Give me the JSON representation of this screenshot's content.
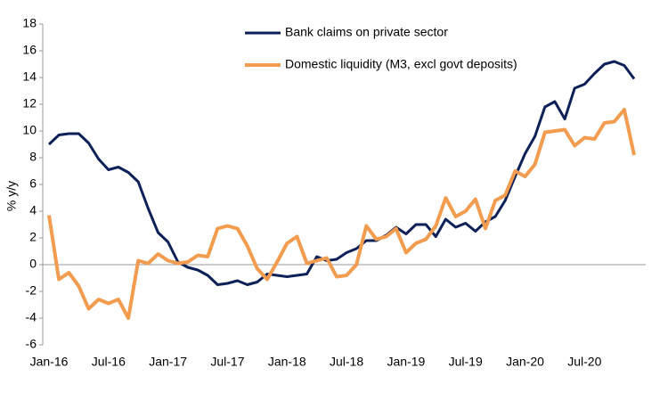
{
  "chart_data": {
    "type": "line",
    "y_label": "% y/y",
    "categories": [
      "Jan-16",
      null,
      null,
      null,
      null,
      null,
      "Jul-16",
      null,
      null,
      null,
      null,
      null,
      "Jan-17",
      null,
      null,
      null,
      null,
      null,
      "Jul-17",
      null,
      null,
      null,
      null,
      null,
      "Jan-18",
      null,
      null,
      null,
      null,
      null,
      "Jul-18",
      null,
      null,
      null,
      null,
      null,
      "Jan-19",
      null,
      null,
      null,
      null,
      null,
      "Jul-19",
      null,
      null,
      null,
      null,
      null,
      "Jan-20",
      null,
      null,
      null,
      null,
      null,
      "Jul-20",
      null,
      null,
      null,
      null,
      null
    ],
    "series": [
      {
        "name": "Bank claims on private sector",
        "color": "#0d2158",
        "values": [
          9.0,
          9.7,
          9.8,
          9.8,
          9.1,
          7.9,
          7.1,
          7.3,
          6.9,
          6.2,
          4.2,
          2.4,
          1.7,
          0.2,
          -0.2,
          -0.4,
          -0.8,
          -1.5,
          -1.4,
          -1.2,
          -1.5,
          -1.3,
          -0.7,
          -0.8,
          -0.9,
          -0.8,
          -0.7,
          0.6,
          0.3,
          0.4,
          0.9,
          1.2,
          1.8,
          1.8,
          2.2,
          2.8,
          2.3,
          3.0,
          3.0,
          2.1,
          3.4,
          2.8,
          3.1,
          2.5,
          3.2,
          3.6,
          4.8,
          6.6,
          8.3,
          9.6,
          11.8,
          12.2,
          10.9,
          13.2,
          13.5,
          14.3,
          15.0,
          15.2,
          14.9,
          13.9
        ]
      },
      {
        "name": "Domestic liquidity (M3, excl govt deposits)",
        "color": "#f39c4f",
        "values": [
          3.7,
          -1.1,
          -0.6,
          -1.6,
          -3.3,
          -2.6,
          -2.9,
          -2.6,
          -4.0,
          0.3,
          0.1,
          0.8,
          0.3,
          0.1,
          0.2,
          0.7,
          0.6,
          2.7,
          2.9,
          2.7,
          1.4,
          -0.3,
          -1.1,
          0.2,
          1.6,
          2.1,
          0.1,
          0.3,
          0.5,
          -0.9,
          -0.8,
          0.0,
          2.9,
          1.9,
          2.1,
          2.7,
          0.9,
          1.6,
          1.9,
          2.9,
          5.0,
          3.6,
          4.0,
          4.9,
          2.7,
          4.8,
          5.2,
          7.0,
          6.6,
          7.5,
          9.9,
          10.0,
          10.1,
          8.9,
          9.5,
          9.4,
          10.6,
          10.7,
          11.6,
          8.2
        ]
      }
    ],
    "ylim": [
      -6,
      18
    ],
    "yticks": [
      -6,
      -4,
      -2,
      0,
      2,
      4,
      6,
      8,
      10,
      12,
      14,
      16,
      18
    ],
    "legend": "top"
  }
}
